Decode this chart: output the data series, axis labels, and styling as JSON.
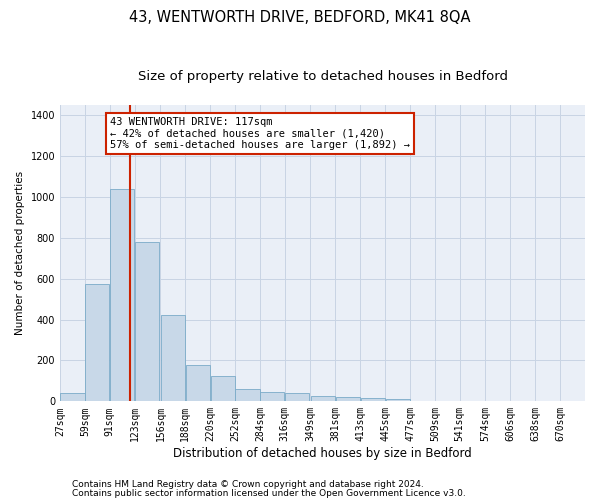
{
  "title": "43, WENTWORTH DRIVE, BEDFORD, MK41 8QA",
  "subtitle": "Size of property relative to detached houses in Bedford",
  "xlabel": "Distribution of detached houses by size in Bedford",
  "ylabel": "Number of detached properties",
  "footnote1": "Contains HM Land Registry data © Crown copyright and database right 2024.",
  "footnote2": "Contains public sector information licensed under the Open Government Licence v3.0.",
  "annotation_line1": "43 WENTWORTH DRIVE: 117sqm",
  "annotation_line2": "← 42% of detached houses are smaller (1,420)",
  "annotation_line3": "57% of semi-detached houses are larger (1,892) →",
  "property_size": 117,
  "categories": [
    "27sqm",
    "59sqm",
    "91sqm",
    "123sqm",
    "156sqm",
    "188sqm",
    "220sqm",
    "252sqm",
    "284sqm",
    "316sqm",
    "349sqm",
    "381sqm",
    "413sqm",
    "445sqm",
    "477sqm",
    "509sqm",
    "541sqm",
    "574sqm",
    "606sqm",
    "638sqm",
    "670sqm"
  ],
  "bin_starts": [
    27,
    59,
    91,
    123,
    156,
    188,
    220,
    252,
    284,
    316,
    349,
    381,
    413,
    445,
    477,
    509,
    541,
    574,
    606,
    638,
    670
  ],
  "bin_width": 32,
  "values": [
    40,
    575,
    1040,
    780,
    420,
    180,
    125,
    60,
    45,
    40,
    25,
    20,
    15,
    10,
    0,
    0,
    0,
    0,
    0,
    0,
    0
  ],
  "bar_color": "#c8d8e8",
  "bar_edge_color": "#7aaac8",
  "grid_color": "#c8d4e4",
  "background_color": "#eaeff7",
  "red_line_color": "#cc2200",
  "annotation_box_edge": "#cc2200",
  "ylim": [
    0,
    1450
  ],
  "yticks": [
    0,
    200,
    400,
    600,
    800,
    1000,
    1200,
    1400
  ],
  "title_fontsize": 10.5,
  "subtitle_fontsize": 9.5,
  "xlabel_fontsize": 8.5,
  "ylabel_fontsize": 7.5,
  "tick_fontsize": 7,
  "annotation_fontsize": 7.5,
  "footnote_fontsize": 6.5
}
